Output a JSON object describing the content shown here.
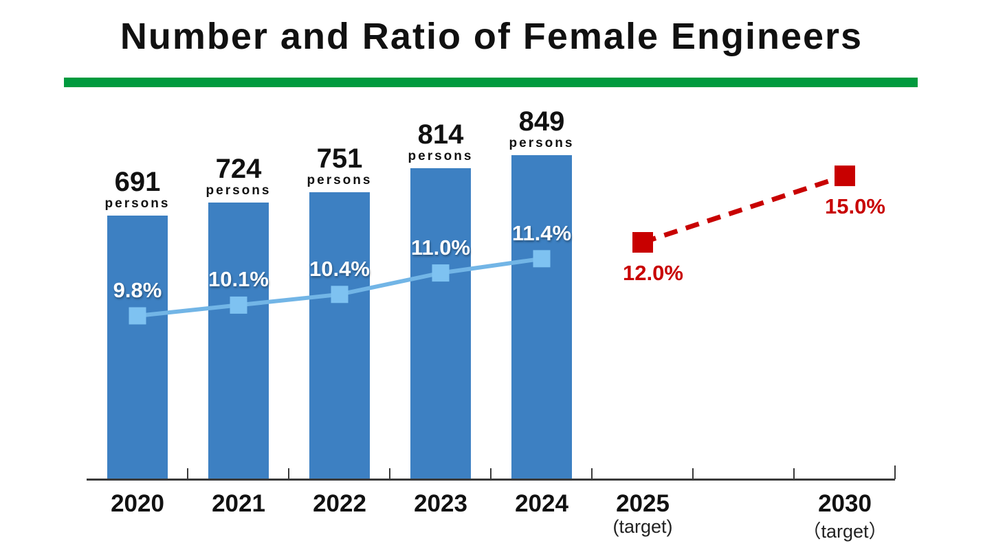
{
  "title": "Number and Ratio of Female Engineers",
  "colors": {
    "divider_green": "#009a3e",
    "axis": "#3a3a3a",
    "text": "#111111"
  },
  "chart_data": {
    "type": "combo",
    "title": "Number and Ratio of Female Engineers",
    "legend": "none",
    "grid": "off",
    "x_axis": {
      "slots": [
        {
          "label": "2020",
          "sublabel": ""
        },
        {
          "label": "2021",
          "sublabel": ""
        },
        {
          "label": "2022",
          "sublabel": ""
        },
        {
          "label": "2023",
          "sublabel": ""
        },
        {
          "label": "2024",
          "sublabel": ""
        },
        {
          "label": "2025",
          "sublabel": "(target)"
        },
        {
          "label": "",
          "sublabel": ""
        },
        {
          "label": "2030",
          "sublabel": "（target）"
        }
      ]
    },
    "series": [
      {
        "name": "number-of-female-engineers",
        "type": "bar",
        "unit": "persons",
        "slot_indices": [
          0,
          1,
          2,
          3,
          4
        ],
        "values": [
          691,
          724,
          751,
          814,
          849
        ],
        "value_labels": [
          "691",
          "724",
          "751",
          "814",
          "849"
        ],
        "color": "#3d80c2"
      },
      {
        "name": "ratio-of-female-engineers",
        "type": "line",
        "slot_indices": [
          0,
          1,
          2,
          3,
          4
        ],
        "values": [
          9.8,
          10.1,
          10.4,
          11.0,
          11.4
        ],
        "value_labels": [
          "9.8%",
          "10.1%",
          "10.4%",
          "11.0%",
          "11.4%"
        ],
        "line_color": "#72b5e6",
        "marker_color": "#7ec2f1",
        "label_color": "#ffffff"
      },
      {
        "name": "target-ratio",
        "type": "dashed-line",
        "slot_indices": [
          5,
          7
        ],
        "values": [
          12.0,
          15.0
        ],
        "value_labels": [
          "12.0%",
          "15.0%"
        ],
        "color": "#c80000"
      }
    ]
  }
}
